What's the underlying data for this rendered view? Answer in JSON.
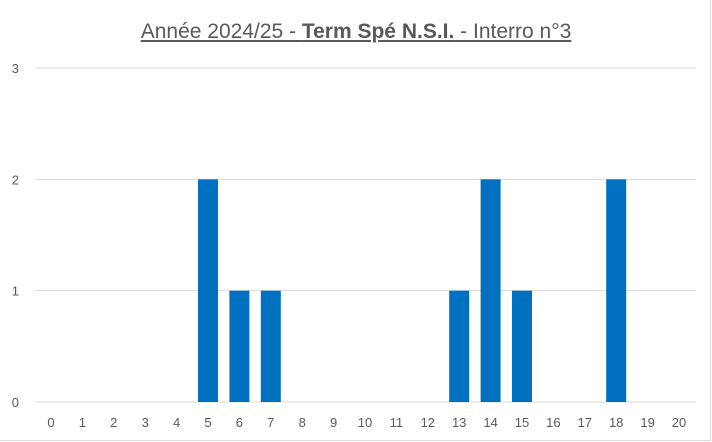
{
  "chart_data": {
    "type": "bar",
    "title": {
      "prefix": "Année 2024/25 - ",
      "bold": "Term Spé N.S.I.",
      "suffix": " - Interro n°3"
    },
    "xlabel": "",
    "ylabel": "",
    "categories": [
      "0",
      "1",
      "2",
      "3",
      "4",
      "5",
      "6",
      "7",
      "8",
      "9",
      "10",
      "11",
      "12",
      "13",
      "14",
      "15",
      "16",
      "17",
      "18",
      "19",
      "20"
    ],
    "values": [
      0,
      0,
      0,
      0,
      0,
      2,
      1,
      1,
      0,
      0,
      0,
      0,
      0,
      1,
      2,
      1,
      0,
      0,
      2,
      0,
      0
    ],
    "yticks": [
      "0",
      "1",
      "2",
      "3"
    ],
    "ylim": [
      0,
      3
    ],
    "grid": true,
    "legend": "none",
    "bar_color": "#0070C0",
    "grid_color": "#d9d9d9"
  }
}
